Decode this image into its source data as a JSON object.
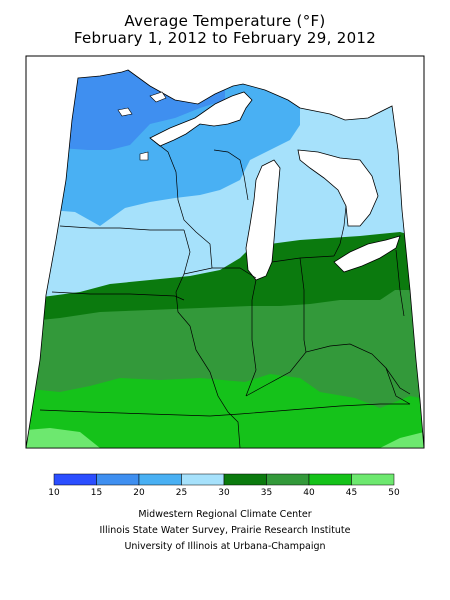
{
  "title_line1": "Average Temperature (°F)",
  "title_line2": "February 1, 2012 to February 29, 2012",
  "legend": {
    "bins": [
      {
        "from": 10,
        "to": 15,
        "color": "#2b4eff"
      },
      {
        "from": 15,
        "to": 20,
        "color": "#3f8ff0"
      },
      {
        "from": 20,
        "to": 25,
        "color": "#49b0f3"
      },
      {
        "from": 25,
        "to": 30,
        "color": "#a6e1fb"
      },
      {
        "from": 30,
        "to": 35,
        "color": "#0b7a0e"
      },
      {
        "from": 35,
        "to": 40,
        "color": "#33993a"
      },
      {
        "from": 40,
        "to": 45,
        "color": "#15c21a"
      },
      {
        "from": 45,
        "to": 50,
        "color": "#6de86f"
      }
    ],
    "labels": [
      "10",
      "15",
      "20",
      "25",
      "30",
      "35",
      "40",
      "45",
      "50"
    ]
  },
  "credits": [
    "Midwestern Regional Climate Center",
    "Illinois State Water Survey, Prairie Research Institute",
    "University of Illinois at Urbana-Champaign"
  ]
}
